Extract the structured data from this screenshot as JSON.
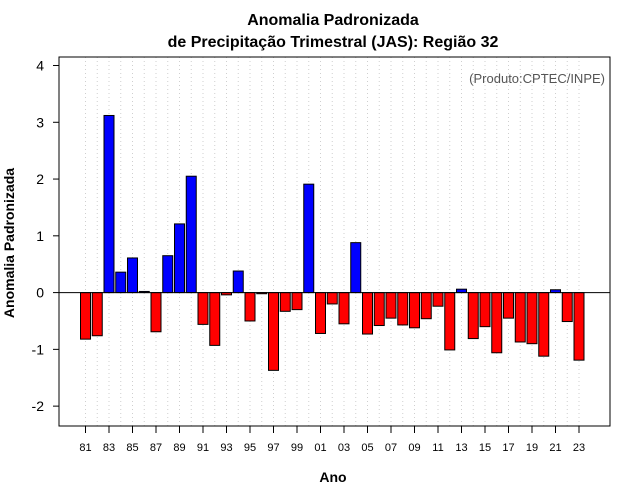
{
  "chart_data": {
    "type": "bar",
    "title": [
      "Anomalia Padronizada",
      "de Precipitação Trimestral (JAS): Região 32"
    ],
    "credit": "(Produto:CPTEC/INPE)",
    "xlabel": "Ano",
    "ylabel": "Anomalia Padronizada",
    "ylim": [
      -2.35,
      4.15
    ],
    "yticks": [
      -2,
      -1,
      0,
      1,
      2,
      3,
      4
    ],
    "categories": [
      "81",
      "82",
      "83",
      "84",
      "85",
      "86",
      "87",
      "88",
      "89",
      "90",
      "91",
      "92",
      "93",
      "94",
      "95",
      "96",
      "97",
      "98",
      "99",
      "00",
      "01",
      "02",
      "03",
      "04",
      "05",
      "06",
      "07",
      "08",
      "09",
      "10",
      "11",
      "12",
      "13",
      "14",
      "15",
      "16",
      "17",
      "18",
      "19",
      "20",
      "21",
      "22",
      "23"
    ],
    "xtick_labels": [
      "81",
      "83",
      "85",
      "87",
      "89",
      "91",
      "93",
      "95",
      "97",
      "99",
      "01",
      "03",
      "05",
      "07",
      "09",
      "11",
      "13",
      "15",
      "17",
      "19",
      "21",
      "23"
    ],
    "values": [
      -0.82,
      -0.76,
      3.12,
      0.36,
      0.61,
      0.02,
      -0.69,
      0.65,
      1.21,
      2.05,
      -0.56,
      -0.93,
      -0.04,
      0.38,
      -0.5,
      -0.02,
      -1.37,
      -0.33,
      -0.3,
      1.91,
      -0.72,
      -0.2,
      -0.55,
      0.88,
      -0.73,
      -0.58,
      -0.45,
      -0.57,
      -0.62,
      -0.46,
      -0.24,
      -1.01,
      0.06,
      -0.81,
      -0.6,
      -1.06,
      -0.45,
      -0.87,
      -0.9,
      -1.12,
      0.05,
      -0.51,
      -1.19
    ],
    "positive_color": "#0000ff",
    "negative_color": "#ff0000",
    "grid": "vertical-dotted"
  }
}
